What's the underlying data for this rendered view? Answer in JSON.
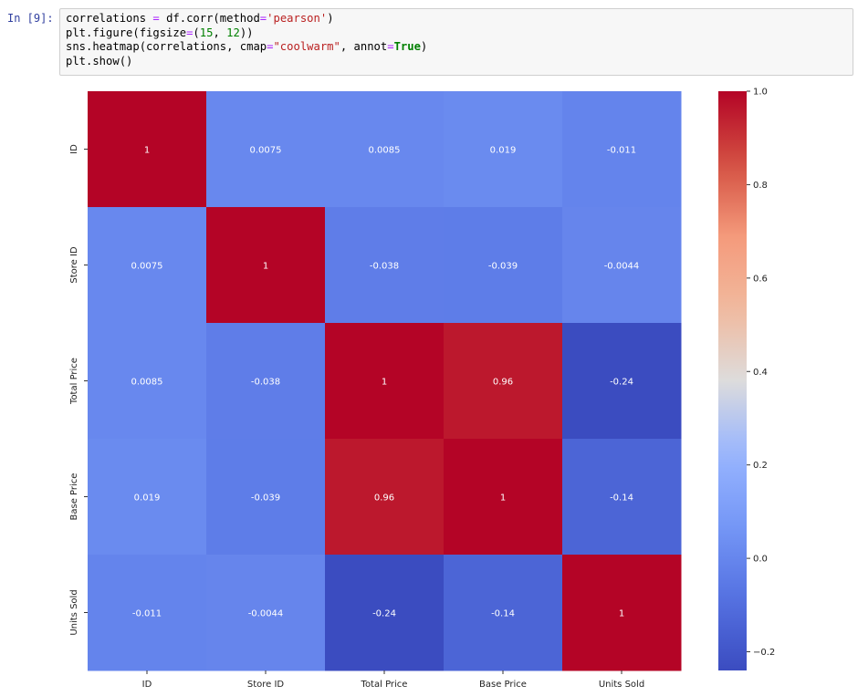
{
  "cell": {
    "prompt": "In [9]:",
    "code_lines": [
      [
        {
          "t": "correlations "
        },
        {
          "t": "=",
          "c": "tok-op"
        },
        {
          "t": " df.corr(method"
        },
        {
          "t": "=",
          "c": "tok-op"
        },
        {
          "t": "'pearson'",
          "c": "tok-str"
        },
        {
          "t": ")"
        }
      ],
      [
        {
          "t": "plt.figure(figsize"
        },
        {
          "t": "=",
          "c": "tok-op"
        },
        {
          "t": "("
        },
        {
          "t": "15",
          "c": "tok-num"
        },
        {
          "t": ", "
        },
        {
          "t": "12",
          "c": "tok-num"
        },
        {
          "t": "))"
        }
      ],
      [
        {
          "t": "sns.heatmap(correlations, cmap"
        },
        {
          "t": "=",
          "c": "tok-op"
        },
        {
          "t": "\"coolwarm\"",
          "c": "tok-str"
        },
        {
          "t": ", annot"
        },
        {
          "t": "=",
          "c": "tok-op"
        },
        {
          "t": "True",
          "c": "tok-kw"
        },
        {
          "t": ")"
        }
      ],
      [
        {
          "t": "plt.show()"
        }
      ]
    ]
  },
  "chart_data": {
    "type": "heatmap",
    "title": "",
    "xlabel": "",
    "ylabel": "",
    "x_labels": [
      "ID",
      "Store ID",
      "Total Price",
      "Base Price",
      "Units Sold"
    ],
    "y_labels": [
      "ID",
      "Store ID",
      "Total Price",
      "Base Price",
      "Units Sold"
    ],
    "values": [
      [
        1,
        0.0075,
        0.0085,
        0.019,
        -0.011
      ],
      [
        0.0075,
        1,
        -0.038,
        -0.039,
        -0.0044
      ],
      [
        0.0085,
        -0.038,
        1,
        0.96,
        -0.24
      ],
      [
        0.019,
        -0.039,
        0.96,
        1,
        -0.14
      ],
      [
        -0.011,
        -0.0044,
        -0.24,
        -0.14,
        1
      ]
    ],
    "annotations": [
      [
        "1",
        "0.0075",
        "0.0085",
        "0.019",
        "-0.011"
      ],
      [
        "0.0075",
        "1",
        "-0.038",
        "-0.039",
        "-0.0044"
      ],
      [
        "0.0085",
        "-0.038",
        "1",
        "0.96",
        "-0.24"
      ],
      [
        "0.019",
        "-0.039",
        "0.96",
        "1",
        "-0.14"
      ],
      [
        "-0.011",
        "-0.0044",
        "-0.24",
        "-0.14",
        "1"
      ]
    ],
    "colormap": "coolwarm",
    "vmin": -0.24,
    "vmax": 1.0,
    "colorbar_ticks": [
      1.0,
      0.8,
      0.6,
      0.4,
      0.2,
      0.0,
      -0.2
    ],
    "colorbar_tick_labels": [
      "1.0",
      "0.8",
      "0.6",
      "0.4",
      "0.2",
      "0.0",
      "−0.2"
    ],
    "grid": false
  }
}
